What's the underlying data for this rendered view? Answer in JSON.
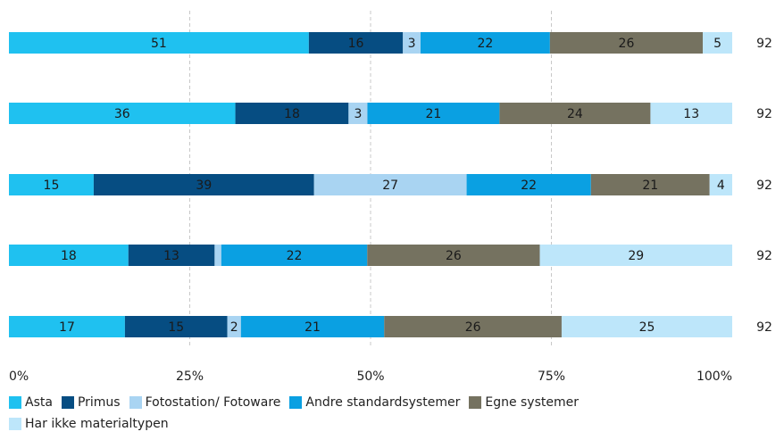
{
  "chart_data": {
    "type": "bar",
    "orientation": "horizontal",
    "stacked": true,
    "normalized": true,
    "xlim": [
      0,
      100
    ],
    "x_ticks": [
      "0%",
      "25%",
      "50%",
      "75%",
      "100%"
    ],
    "grid": true,
    "legend_position": "bottom-left",
    "series": [
      {
        "name": "Asta",
        "color": "#1fc1f0",
        "values": [
          51,
          36,
          15,
          18,
          17
        ]
      },
      {
        "name": "Primus",
        "color": "#064d82",
        "values": [
          16,
          18,
          39,
          13,
          15
        ]
      },
      {
        "name": "Fotostation/ Fotoware",
        "color": "#a9d4f2",
        "values": [
          3,
          3,
          27,
          1,
          2
        ]
      },
      {
        "name": "Andre standardsystemer",
        "color": "#0aa0e2",
        "values": [
          22,
          21,
          22,
          22,
          21
        ]
      },
      {
        "name": "Egne systemer",
        "color": "#757260",
        "values": [
          26,
          24,
          21,
          26,
          26
        ]
      },
      {
        "name": "Har ikke materialtypen",
        "color": "#bde6fa",
        "values": [
          5,
          13,
          4,
          29,
          25
        ]
      }
    ],
    "row_totals": [
      "92",
      "92",
      "92",
      "92",
      "92"
    ]
  }
}
